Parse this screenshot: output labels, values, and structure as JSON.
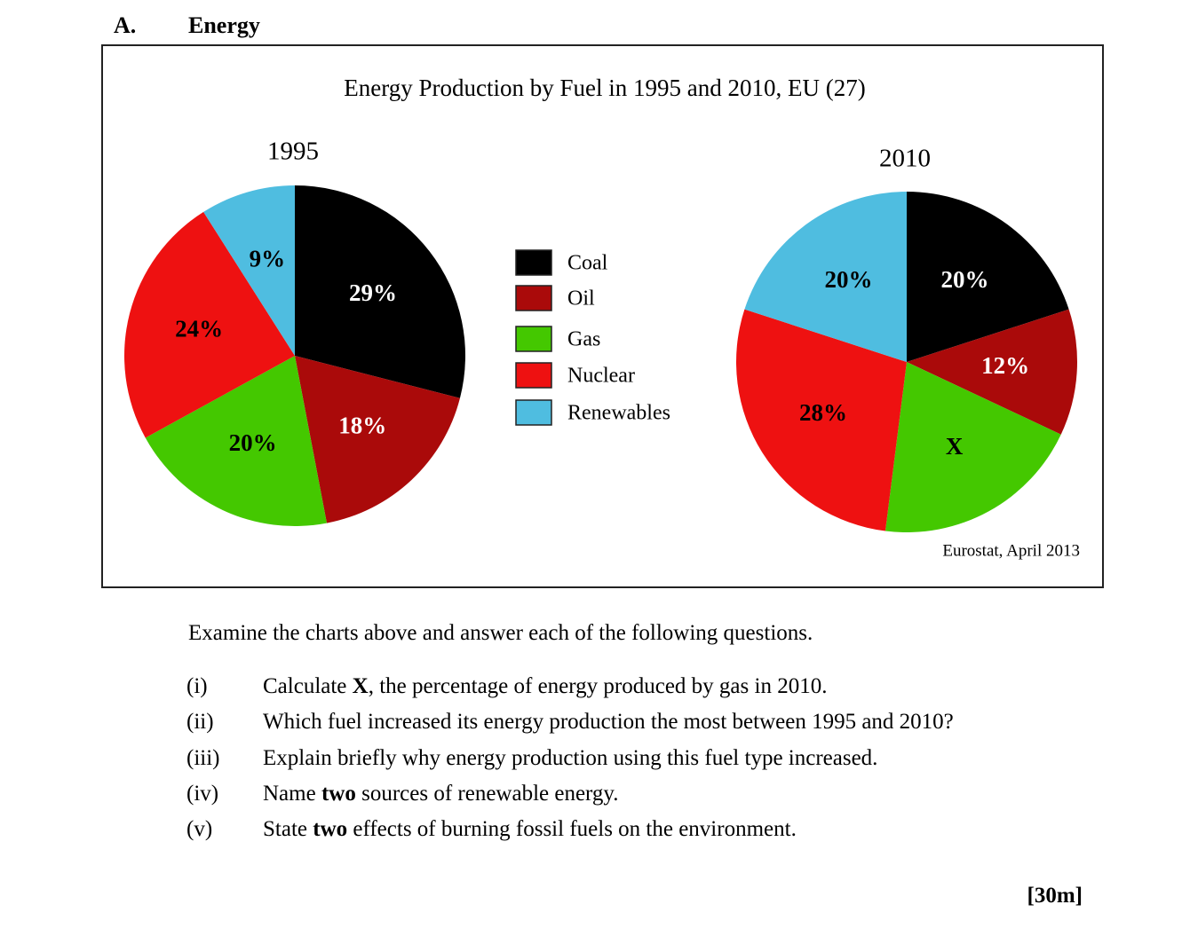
{
  "section": {
    "letter": "A.",
    "title": "Energy"
  },
  "chart_data": {
    "type": "pie",
    "title": "Energy Production by Fuel in 1995 and 2010, EU (27)",
    "legend": {
      "placement": "center",
      "entries": [
        {
          "name": "Coal",
          "color": "#000000"
        },
        {
          "name": "Oil",
          "color": "#aa0a0a"
        },
        {
          "name": "Gas",
          "color": "#44c800"
        },
        {
          "name": "Nuclear",
          "color": "#ee1111"
        },
        {
          "name": "Renewables",
          "color": "#4fbde0"
        }
      ]
    },
    "charts": [
      {
        "year": "1995",
        "slices": [
          {
            "fuel": "Coal",
            "value": 29,
            "label": "29%",
            "label_color": "#ffffff"
          },
          {
            "fuel": "Oil",
            "value": 18,
            "label": "18%",
            "label_color": "#ffffff"
          },
          {
            "fuel": "Gas",
            "value": 20,
            "label": "20%",
            "label_color": "#000000"
          },
          {
            "fuel": "Nuclear",
            "value": 24,
            "label": "24%",
            "label_color": "#000000"
          },
          {
            "fuel": "Renewables",
            "value": 9,
            "label": "9%",
            "label_color": "#000000"
          }
        ]
      },
      {
        "year": "2010",
        "slices": [
          {
            "fuel": "Coal",
            "value": 20,
            "label": "20%",
            "label_color": "#ffffff"
          },
          {
            "fuel": "Oil",
            "value": 12,
            "label": "12%",
            "label_color": "#ffffff"
          },
          {
            "fuel": "Gas",
            "value": 20,
            "label": "X",
            "label_color": "#000000"
          },
          {
            "fuel": "Nuclear",
            "value": 28,
            "label": "28%",
            "label_color": "#000000"
          },
          {
            "fuel": "Renewables",
            "value": 20,
            "label": "20%",
            "label_color": "#000000"
          }
        ]
      }
    ],
    "source": "Eurostat, April 2013"
  },
  "questions": {
    "intro": "Examine the charts above and answer each of the following questions.",
    "items": [
      {
        "num": "(i)",
        "before": "Calculate ",
        "bold": "X",
        "after": ", the percentage of energy produced by gas in 2010."
      },
      {
        "num": "(ii)",
        "before": "Which fuel increased its energy production the most between 1995 and 2010?",
        "bold": "",
        "after": ""
      },
      {
        "num": "(iii)",
        "before": "Explain briefly why energy production using this fuel type increased.",
        "bold": "",
        "after": ""
      },
      {
        "num": "(iv)",
        "before": "Name ",
        "bold": "two",
        "after": " sources of renewable energy."
      },
      {
        "num": "(v)",
        "before": "State ",
        "bold": "two",
        "after": " effects of burning fossil fuels on the environment."
      }
    ]
  },
  "marks": "[30m]"
}
